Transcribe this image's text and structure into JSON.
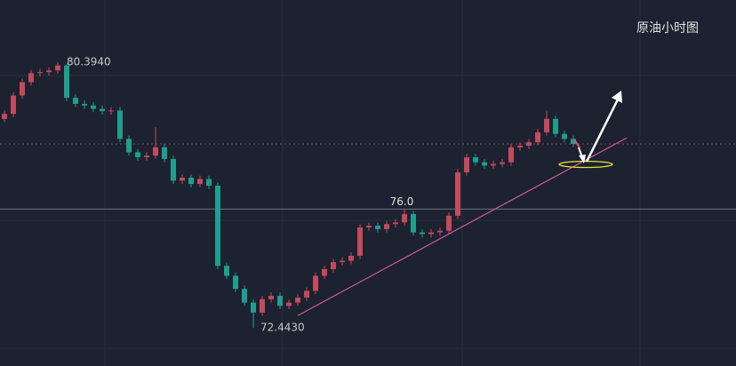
{
  "chart_data": {
    "type": "candlestick",
    "title": "原油小时图",
    "open": [
      78.7,
      78.85,
      79.4,
      79.8,
      80.07,
      80.1,
      80.15,
      80.3,
      79.33,
      79.15,
      79.1,
      79.0,
      78.93,
      78.95,
      78.1,
      77.7,
      77.55,
      77.6,
      77.85,
      77.5,
      76.85,
      76.94,
      76.75,
      76.9,
      76.7,
      74.3,
      74.0,
      73.61,
      73.2,
      72.9,
      73.3,
      73.4,
      73.1,
      73.2,
      73.35,
      73.55,
      74.0,
      74.2,
      74.41,
      74.45,
      74.6,
      75.45,
      75.5,
      75.4,
      75.55,
      75.6,
      75.85,
      75.3,
      75.25,
      75.3,
      75.35,
      75.8,
      77.1,
      77.55,
      77.4,
      77.3,
      77.35,
      77.4,
      77.85,
      77.9,
      78.0,
      78.3,
      78.7,
      78.25,
      78.1
    ],
    "high": [
      78.95,
      79.5,
      79.9,
      80.17,
      80.2,
      80.25,
      80.394,
      80.35,
      79.43,
      79.25,
      79.2,
      79.1,
      79.05,
      79.05,
      78.2,
      77.8,
      77.7,
      78.45,
      77.95,
      77.6,
      77.04,
      77.04,
      77.0,
      77.0,
      76.8,
      74.4,
      74.1,
      73.71,
      73.3,
      73.4,
      73.5,
      73.5,
      73.3,
      73.45,
      73.65,
      74.1,
      74.3,
      74.51,
      74.55,
      74.7,
      75.55,
      75.6,
      75.6,
      75.65,
      75.7,
      76.0,
      75.95,
      75.4,
      75.4,
      75.45,
      75.9,
      77.2,
      77.65,
      77.65,
      77.5,
      77.45,
      77.5,
      77.95,
      78.0,
      78.1,
      78.4,
      78.95,
      78.8,
      78.35,
      78.2
    ],
    "low": [
      78.6,
      78.75,
      79.3,
      79.7,
      79.97,
      80.0,
      80.05,
      79.23,
      79.05,
      79.0,
      78.9,
      78.83,
      78.83,
      78.0,
      77.6,
      77.45,
      77.45,
      77.5,
      77.4,
      76.75,
      76.75,
      76.65,
      76.65,
      76.6,
      74.2,
      73.9,
      73.51,
      73.1,
      72.443,
      72.8,
      73.2,
      73.0,
      73.0,
      73.1,
      73.25,
      73.45,
      73.9,
      74.1,
      74.31,
      74.35,
      74.5,
      75.35,
      75.3,
      75.3,
      75.45,
      75.5,
      75.2,
      75.15,
      75.15,
      75.2,
      75.25,
      75.7,
      77.0,
      77.3,
      77.2,
      77.2,
      77.25,
      77.3,
      77.75,
      77.8,
      77.9,
      78.2,
      78.15,
      78.0,
      77.85
    ],
    "close": [
      78.85,
      79.4,
      79.8,
      80.07,
      80.1,
      80.15,
      80.3,
      79.33,
      79.15,
      79.1,
      79.0,
      78.93,
      78.95,
      78.1,
      77.7,
      77.55,
      77.6,
      77.85,
      77.5,
      76.85,
      76.94,
      76.75,
      76.9,
      76.7,
      74.3,
      74.0,
      73.61,
      73.2,
      72.9,
      73.3,
      73.4,
      73.1,
      73.2,
      73.35,
      73.55,
      74.0,
      74.2,
      74.41,
      74.45,
      74.6,
      75.45,
      75.5,
      75.4,
      75.55,
      75.6,
      75.85,
      75.3,
      75.25,
      75.3,
      75.35,
      75.8,
      77.1,
      77.55,
      77.4,
      77.3,
      77.35,
      77.4,
      77.85,
      77.9,
      78.0,
      78.3,
      78.7,
      78.25,
      78.1,
      77.95
    ],
    "up_color": "#c44a5c",
    "down_color": "#1f9e8e",
    "ylim": [
      71.3,
      82.26
    ],
    "high_label": "80.3940",
    "low_label": "72.4430",
    "horizontal_line": {
      "value": 76.0,
      "label": "76.0"
    },
    "trendline": {
      "from": [
        33,
        72.81
      ],
      "to": [
        70,
        78.13
      ],
      "color": "#d4589c"
    }
  }
}
